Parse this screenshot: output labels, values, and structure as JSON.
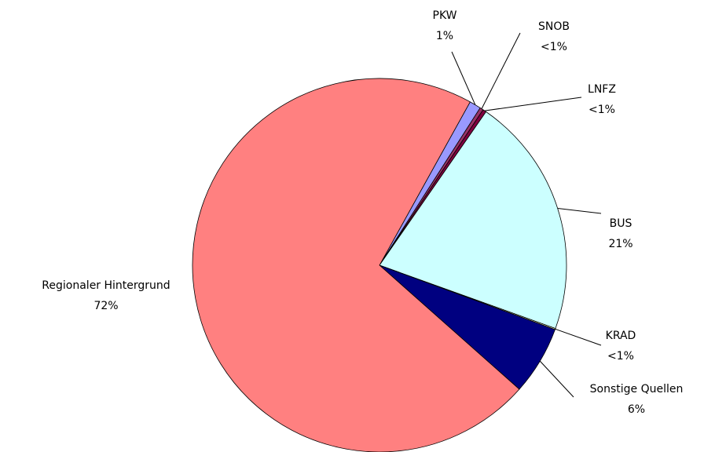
{
  "chart_data": {
    "type": "pie",
    "categories": [
      "PKW",
      "SNOB",
      "LNFZ",
      "BUS",
      "KRAD",
      "Sonstige Quellen",
      "Regionaler Hintergrund"
    ],
    "values": [
      1,
      0.3,
      0.3,
      21,
      0.1,
      6,
      72
    ],
    "value_labels": [
      "1%",
      "<1%",
      "<1%",
      "21%",
      "<1%",
      "6%",
      "72%"
    ],
    "colors": [
      "#9999ff",
      "#993366",
      "#800040",
      "#ccffff",
      "#ffffcc",
      "#000080",
      "#ff8080"
    ]
  }
}
